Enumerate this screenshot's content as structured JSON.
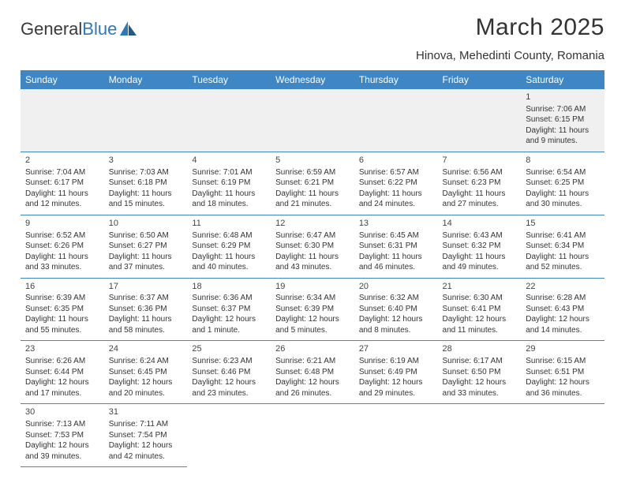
{
  "logo": {
    "text1": "General",
    "text2": "Blue"
  },
  "title": "March 2025",
  "location": "Hinova, Mehedinti County, Romania",
  "daynames": [
    "Sunday",
    "Monday",
    "Tuesday",
    "Wednesday",
    "Thursday",
    "Friday",
    "Saturday"
  ],
  "colors": {
    "header_bg": "#3f86c5",
    "header_text": "#ffffff",
    "row_border": "#3f86c5",
    "firstweek_bg": "#f0f0f0",
    "body_text": "#333333",
    "logo_blue": "#2f78b7"
  },
  "fonts": {
    "title_size_pt": 22,
    "location_size_pt": 11,
    "dayname_size_pt": 9,
    "cell_size_pt": 7.5
  },
  "weeks": [
    [
      null,
      null,
      null,
      null,
      null,
      null,
      {
        "n": "1",
        "sr": "Sunrise: 7:06 AM",
        "ss": "Sunset: 6:15 PM",
        "dl1": "Daylight: 11 hours",
        "dl2": "and 9 minutes."
      }
    ],
    [
      {
        "n": "2",
        "sr": "Sunrise: 7:04 AM",
        "ss": "Sunset: 6:17 PM",
        "dl1": "Daylight: 11 hours",
        "dl2": "and 12 minutes."
      },
      {
        "n": "3",
        "sr": "Sunrise: 7:03 AM",
        "ss": "Sunset: 6:18 PM",
        "dl1": "Daylight: 11 hours",
        "dl2": "and 15 minutes."
      },
      {
        "n": "4",
        "sr": "Sunrise: 7:01 AM",
        "ss": "Sunset: 6:19 PM",
        "dl1": "Daylight: 11 hours",
        "dl2": "and 18 minutes."
      },
      {
        "n": "5",
        "sr": "Sunrise: 6:59 AM",
        "ss": "Sunset: 6:21 PM",
        "dl1": "Daylight: 11 hours",
        "dl2": "and 21 minutes."
      },
      {
        "n": "6",
        "sr": "Sunrise: 6:57 AM",
        "ss": "Sunset: 6:22 PM",
        "dl1": "Daylight: 11 hours",
        "dl2": "and 24 minutes."
      },
      {
        "n": "7",
        "sr": "Sunrise: 6:56 AM",
        "ss": "Sunset: 6:23 PM",
        "dl1": "Daylight: 11 hours",
        "dl2": "and 27 minutes."
      },
      {
        "n": "8",
        "sr": "Sunrise: 6:54 AM",
        "ss": "Sunset: 6:25 PM",
        "dl1": "Daylight: 11 hours",
        "dl2": "and 30 minutes."
      }
    ],
    [
      {
        "n": "9",
        "sr": "Sunrise: 6:52 AM",
        "ss": "Sunset: 6:26 PM",
        "dl1": "Daylight: 11 hours",
        "dl2": "and 33 minutes."
      },
      {
        "n": "10",
        "sr": "Sunrise: 6:50 AM",
        "ss": "Sunset: 6:27 PM",
        "dl1": "Daylight: 11 hours",
        "dl2": "and 37 minutes."
      },
      {
        "n": "11",
        "sr": "Sunrise: 6:48 AM",
        "ss": "Sunset: 6:29 PM",
        "dl1": "Daylight: 11 hours",
        "dl2": "and 40 minutes."
      },
      {
        "n": "12",
        "sr": "Sunrise: 6:47 AM",
        "ss": "Sunset: 6:30 PM",
        "dl1": "Daylight: 11 hours",
        "dl2": "and 43 minutes."
      },
      {
        "n": "13",
        "sr": "Sunrise: 6:45 AM",
        "ss": "Sunset: 6:31 PM",
        "dl1": "Daylight: 11 hours",
        "dl2": "and 46 minutes."
      },
      {
        "n": "14",
        "sr": "Sunrise: 6:43 AM",
        "ss": "Sunset: 6:32 PM",
        "dl1": "Daylight: 11 hours",
        "dl2": "and 49 minutes."
      },
      {
        "n": "15",
        "sr": "Sunrise: 6:41 AM",
        "ss": "Sunset: 6:34 PM",
        "dl1": "Daylight: 11 hours",
        "dl2": "and 52 minutes."
      }
    ],
    [
      {
        "n": "16",
        "sr": "Sunrise: 6:39 AM",
        "ss": "Sunset: 6:35 PM",
        "dl1": "Daylight: 11 hours",
        "dl2": "and 55 minutes."
      },
      {
        "n": "17",
        "sr": "Sunrise: 6:37 AM",
        "ss": "Sunset: 6:36 PM",
        "dl1": "Daylight: 11 hours",
        "dl2": "and 58 minutes."
      },
      {
        "n": "18",
        "sr": "Sunrise: 6:36 AM",
        "ss": "Sunset: 6:37 PM",
        "dl1": "Daylight: 12 hours",
        "dl2": "and 1 minute."
      },
      {
        "n": "19",
        "sr": "Sunrise: 6:34 AM",
        "ss": "Sunset: 6:39 PM",
        "dl1": "Daylight: 12 hours",
        "dl2": "and 5 minutes."
      },
      {
        "n": "20",
        "sr": "Sunrise: 6:32 AM",
        "ss": "Sunset: 6:40 PM",
        "dl1": "Daylight: 12 hours",
        "dl2": "and 8 minutes."
      },
      {
        "n": "21",
        "sr": "Sunrise: 6:30 AM",
        "ss": "Sunset: 6:41 PM",
        "dl1": "Daylight: 12 hours",
        "dl2": "and 11 minutes."
      },
      {
        "n": "22",
        "sr": "Sunrise: 6:28 AM",
        "ss": "Sunset: 6:43 PM",
        "dl1": "Daylight: 12 hours",
        "dl2": "and 14 minutes."
      }
    ],
    [
      {
        "n": "23",
        "sr": "Sunrise: 6:26 AM",
        "ss": "Sunset: 6:44 PM",
        "dl1": "Daylight: 12 hours",
        "dl2": "and 17 minutes."
      },
      {
        "n": "24",
        "sr": "Sunrise: 6:24 AM",
        "ss": "Sunset: 6:45 PM",
        "dl1": "Daylight: 12 hours",
        "dl2": "and 20 minutes."
      },
      {
        "n": "25",
        "sr": "Sunrise: 6:23 AM",
        "ss": "Sunset: 6:46 PM",
        "dl1": "Daylight: 12 hours",
        "dl2": "and 23 minutes."
      },
      {
        "n": "26",
        "sr": "Sunrise: 6:21 AM",
        "ss": "Sunset: 6:48 PM",
        "dl1": "Daylight: 12 hours",
        "dl2": "and 26 minutes."
      },
      {
        "n": "27",
        "sr": "Sunrise: 6:19 AM",
        "ss": "Sunset: 6:49 PM",
        "dl1": "Daylight: 12 hours",
        "dl2": "and 29 minutes."
      },
      {
        "n": "28",
        "sr": "Sunrise: 6:17 AM",
        "ss": "Sunset: 6:50 PM",
        "dl1": "Daylight: 12 hours",
        "dl2": "and 33 minutes."
      },
      {
        "n": "29",
        "sr": "Sunrise: 6:15 AM",
        "ss": "Sunset: 6:51 PM",
        "dl1": "Daylight: 12 hours",
        "dl2": "and 36 minutes."
      }
    ],
    [
      {
        "n": "30",
        "sr": "Sunrise: 7:13 AM",
        "ss": "Sunset: 7:53 PM",
        "dl1": "Daylight: 12 hours",
        "dl2": "and 39 minutes."
      },
      {
        "n": "31",
        "sr": "Sunrise: 7:11 AM",
        "ss": "Sunset: 7:54 PM",
        "dl1": "Daylight: 12 hours",
        "dl2": "and 42 minutes."
      },
      null,
      null,
      null,
      null,
      null
    ]
  ]
}
